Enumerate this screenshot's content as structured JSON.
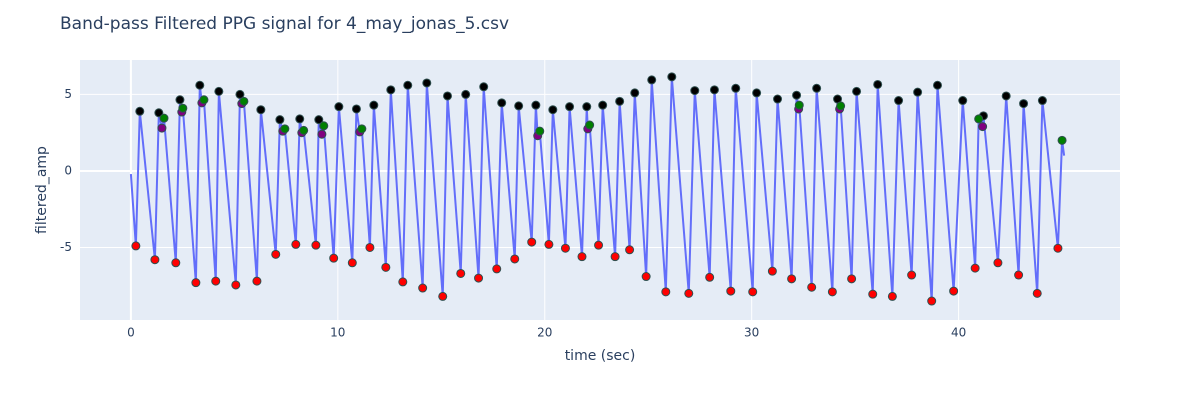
{
  "chart_data": {
    "type": "scatter",
    "title": "Band-pass Filtered PPG signal for 4_may_jonas_5.csv",
    "x_label": "time (sec)",
    "y_label": "filtered_amp",
    "xlim": [
      -2.46,
      47.8
    ],
    "xticks": [
      0,
      10,
      20,
      30,
      40
    ],
    "ylim": [
      -9.74,
      7.25
    ],
    "yticks": [
      -5,
      0,
      5
    ],
    "grid": true,
    "series": [
      {
        "mode": "lines",
        "color": "#636efa",
        "x": [
          0,
          0.24,
          0.43,
          1.16,
          1.35,
          1.5,
          1.6,
          2.17,
          2.37,
          2.46,
          2.51,
          3.14,
          3.33,
          3.43,
          3.53,
          4.1,
          4.25,
          5.07,
          5.27,
          5.36,
          5.46,
          6.09,
          6.28,
          7.0,
          7.2,
          7.34,
          7.44,
          7.97,
          8.16,
          8.26,
          8.35,
          8.94,
          9.08,
          9.23,
          9.32,
          9.8,
          10.05,
          10.7,
          10.9,
          11.06,
          11.16,
          11.55,
          11.74,
          12.32,
          12.56,
          13.14,
          13.38,
          14.1,
          14.3,
          15.07,
          15.3,
          15.94,
          16.18,
          16.8,
          17.05,
          17.68,
          17.92,
          18.55,
          18.74,
          19.37,
          19.57,
          19.66,
          19.76,
          20.2,
          20.39,
          21.0,
          21.2,
          21.8,
          22.03,
          22.08,
          22.17,
          22.6,
          22.8,
          23.4,
          23.62,
          24.1,
          24.35,
          24.9,
          25.17,
          25.85,
          26.14,
          26.96,
          27.25,
          27.97,
          28.2,
          28.99,
          29.23,
          30.05,
          30.24,
          31.0,
          31.25,
          31.93,
          32.17,
          32.27,
          32.3,
          32.9,
          33.14,
          33.9,
          34.15,
          34.25,
          34.3,
          34.83,
          35.07,
          35.85,
          36.09,
          36.8,
          37.1,
          37.73,
          38.02,
          38.7,
          38.98,
          39.76,
          40.2,
          40.8,
          40.97,
          41.16,
          41.2,
          41.9,
          42.3,
          42.9,
          43.14,
          43.8,
          44.05,
          44.8,
          45.0,
          45.1
        ],
        "values": [
          -0.2,
          -4.9,
          3.9,
          -5.8,
          3.8,
          2.8,
          3.45,
          -6.0,
          4.65,
          3.85,
          4.1,
          -7.3,
          5.6,
          4.45,
          4.65,
          -7.2,
          5.2,
          -7.45,
          5.0,
          4.4,
          4.55,
          -7.2,
          4.0,
          -5.45,
          3.35,
          2.6,
          2.75,
          -4.8,
          3.4,
          2.5,
          2.65,
          -4.85,
          3.35,
          2.4,
          2.95,
          -5.7,
          4.2,
          -6.0,
          4.05,
          2.55,
          2.75,
          -5.0,
          4.3,
          -6.3,
          5.3,
          -7.25,
          5.6,
          -7.65,
          5.75,
          -8.2,
          4.9,
          -6.7,
          5.0,
          -7.0,
          5.5,
          -6.4,
          4.45,
          -5.75,
          4.25,
          -4.65,
          4.3,
          2.3,
          2.6,
          -4.8,
          4.0,
          -5.05,
          4.2,
          -5.6,
          4.2,
          2.75,
          3.0,
          -4.85,
          4.3,
          -5.6,
          4.55,
          -5.15,
          5.1,
          -6.9,
          5.95,
          -7.9,
          6.15,
          -8.0,
          5.25,
          -6.95,
          5.3,
          -7.85,
          5.4,
          -7.9,
          5.1,
          -6.55,
          4.7,
          -7.05,
          4.95,
          4.05,
          4.3,
          -7.6,
          5.4,
          -7.9,
          4.7,
          4.05,
          4.25,
          -7.05,
          5.2,
          -8.05,
          5.65,
          -8.2,
          4.6,
          -6.8,
          5.15,
          -8.5,
          5.6,
          -7.85,
          4.6,
          -6.35,
          3.4,
          2.9,
          3.6,
          -6.0,
          4.9,
          -6.8,
          4.4,
          -8.0,
          4.6,
          -5.05,
          2.0,
          1.0
        ]
      },
      {
        "mode": "markers",
        "color": "red",
        "x": [
          0.24,
          1.16,
          2.17,
          3.14,
          4.1,
          5.07,
          6.09,
          7.0,
          7.97,
          8.94,
          9.8,
          10.7,
          11.55,
          12.32,
          13.14,
          14.1,
          15.07,
          15.94,
          16.8,
          17.68,
          18.55,
          19.37,
          20.2,
          21.0,
          21.8,
          22.6,
          23.4,
          24.1,
          24.9,
          25.85,
          26.96,
          27.97,
          28.99,
          30.05,
          31.0,
          31.93,
          32.9,
          33.9,
          34.83,
          35.85,
          36.8,
          37.73,
          38.7,
          39.76,
          40.8,
          41.9,
          42.9,
          43.8,
          44.8
        ],
        "values": [
          -4.9,
          -5.8,
          -6.0,
          -7.3,
          -7.2,
          -7.45,
          -7.2,
          -5.45,
          -4.8,
          -4.85,
          -5.7,
          -6.0,
          -5.0,
          -6.3,
          -7.25,
          -7.65,
          -8.2,
          -6.7,
          -7.0,
          -6.4,
          -5.75,
          -4.65,
          -4.8,
          -5.05,
          -5.6,
          -4.85,
          -5.6,
          -5.15,
          -6.9,
          -7.9,
          -8.0,
          -6.95,
          -7.85,
          -7.9,
          -6.55,
          -7.05,
          -7.6,
          -7.9,
          -7.05,
          -8.05,
          -8.2,
          -6.8,
          -8.5,
          -7.85,
          -6.35,
          -6.0,
          -6.8,
          -8.0,
          -5.05
        ]
      },
      {
        "mode": "markers",
        "color": "black",
        "x": [
          0.43,
          1.35,
          2.37,
          3.33,
          4.25,
          5.27,
          6.28,
          7.2,
          8.16,
          9.08,
          10.05,
          10.9,
          11.74,
          12.56,
          13.38,
          14.3,
          15.3,
          16.18,
          17.05,
          17.92,
          18.74,
          19.57,
          20.39,
          21.2,
          22.03,
          22.8,
          23.62,
          24.35,
          25.17,
          26.14,
          27.25,
          28.2,
          29.23,
          30.24,
          31.25,
          32.17,
          33.14,
          34.15,
          35.07,
          36.09,
          37.1,
          38.02,
          38.98,
          40.2,
          41.2,
          42.3,
          43.14,
          44.05
        ],
        "values": [
          3.9,
          3.8,
          4.65,
          5.6,
          5.2,
          5.0,
          4.0,
          3.35,
          3.4,
          3.35,
          4.2,
          4.05,
          4.3,
          5.3,
          5.6,
          5.75,
          4.9,
          5.0,
          5.5,
          4.45,
          4.25,
          4.3,
          4.0,
          4.2,
          4.2,
          4.3,
          4.55,
          5.1,
          5.95,
          6.15,
          5.25,
          5.3,
          5.4,
          5.1,
          4.7,
          4.95,
          5.4,
          4.7,
          5.2,
          5.65,
          4.6,
          5.15,
          5.6,
          4.6,
          3.6,
          4.9,
          4.4,
          4.6
        ]
      },
      {
        "mode": "markers",
        "color": "purple",
        "x": [
          1.5,
          2.46,
          3.43,
          5.36,
          7.34,
          8.26,
          9.23,
          11.06,
          19.66,
          22.08,
          32.27,
          34.25,
          41.16
        ],
        "values": [
          2.8,
          3.85,
          4.45,
          4.4,
          2.6,
          2.5,
          2.4,
          2.55,
          2.3,
          2.75,
          4.05,
          4.05,
          2.9
        ]
      },
      {
        "mode": "markers",
        "color": "green",
        "x": [
          1.6,
          2.51,
          3.53,
          5.46,
          7.44,
          8.35,
          9.32,
          11.16,
          19.76,
          22.17,
          32.3,
          34.3,
          40.97,
          45.0
        ],
        "values": [
          3.45,
          4.1,
          4.65,
          4.55,
          2.75,
          2.65,
          2.95,
          2.75,
          2.6,
          3.0,
          4.3,
          4.25,
          3.4,
          2.0
        ]
      }
    ]
  }
}
